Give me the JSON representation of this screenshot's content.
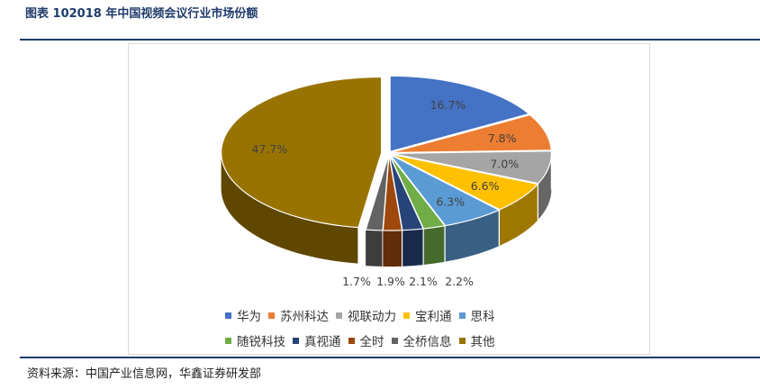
{
  "figure_title": "图表 102018 年中国视频会议行业市场份额",
  "source": "资料来源：中国产业信息网，华鑫证券研发部",
  "chart_data": {
    "type": "pie",
    "subtype": "3d-exploded-pie",
    "categories": [
      "华为",
      "苏州科达",
      "视联动力",
      "宝利通",
      "思科",
      "随锐科技",
      "真视通",
      "全时",
      "全桥信息",
      "其他"
    ],
    "values": [
      16.7,
      7.8,
      7.0,
      6.6,
      6.3,
      2.2,
      2.1,
      1.9,
      1.7,
      47.7
    ],
    "labels": [
      "16.7%",
      "7.8%",
      "7.0%",
      "6.6%",
      "6.3%",
      "2.2%",
      "2.1%",
      "1.9%",
      "1.7%",
      "47.7%"
    ],
    "colors": [
      "#4472c4",
      "#ed7d31",
      "#a5a5a5",
      "#ffc000",
      "#5b9bd5",
      "#70ad47",
      "#264478",
      "#9e480e",
      "#636363",
      "#997300"
    ],
    "legend_position": "bottom"
  }
}
